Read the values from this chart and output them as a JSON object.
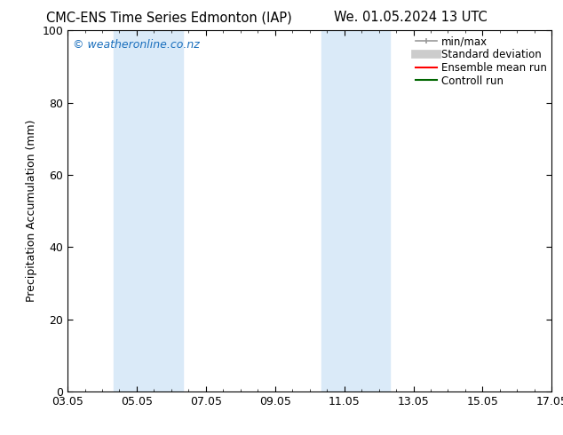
{
  "title_left": "CMC-ENS Time Series Edmonton (IAP)",
  "title_right": "We. 01.05.2024 13 UTC",
  "ylabel": "Precipitation Accumulation (mm)",
  "watermark": "© weatheronline.co.nz",
  "ylim": [
    0,
    100
  ],
  "yticks": [
    0,
    20,
    40,
    60,
    80,
    100
  ],
  "xtick_labels": [
    "03.05",
    "05.05",
    "07.05",
    "09.05",
    "11.05",
    "13.05",
    "15.05",
    "17.05"
  ],
  "xtick_positions": [
    0,
    2,
    4,
    6,
    8,
    10,
    12,
    14
  ],
  "xlim": [
    0,
    14
  ],
  "bg_color": "#ffffff",
  "plot_bg_color": "#ffffff",
  "shaded_bands": [
    {
      "x_start": 1.33,
      "x_end": 3.33,
      "color": "#daeaf8",
      "alpha": 1.0
    },
    {
      "x_start": 7.33,
      "x_end": 9.33,
      "color": "#daeaf8",
      "alpha": 1.0
    }
  ],
  "watermark_color": "#1a6fbd",
  "title_fontsize": 10.5,
  "ylabel_fontsize": 9,
  "tick_fontsize": 9,
  "legend_fontsize": 8.5
}
